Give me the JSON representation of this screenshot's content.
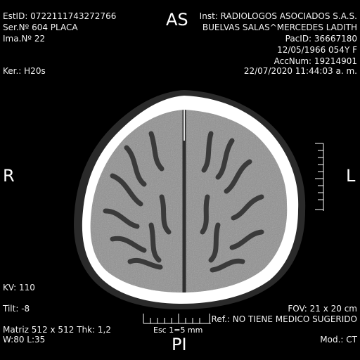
{
  "header_left": {
    "study_id": "EstID: 0722111743272766",
    "series": "Ser.Nº 604  PLACA",
    "image": "Ima.Nº 22",
    "kernel": "Ker.: H20s"
  },
  "header_right": {
    "institution": "Inst: RADIOLOGOS ASOCIADOS S.A.S.",
    "patient_name": "BUELVAS SALAS^MERCEDES LADITH",
    "patient_id": "PacID: 36667180",
    "dob": "12/05/1966 054Y F",
    "accession": "AccNum: 19214901",
    "datetime": "22/07/2020 11:44:03 a. m."
  },
  "orientation": {
    "top": "AS",
    "bottom": "PI",
    "left": "R",
    "right": "L"
  },
  "footer_left": {
    "kv": "KV: 110",
    "tilt": "Tilt: -8",
    "matrix": "Matriz 512 x 512 Thk: 1,2",
    "window": "W:80 L:35"
  },
  "footer_right": {
    "fov": "FOV: 21 x 20 cm",
    "referrer": "Ref.: NO TIENE MEDICO SUGERIDO",
    "modality": "Mod.: CT"
  },
  "scale": {
    "label": "Esc 1=5 mm"
  },
  "colors": {
    "background": "#000000",
    "text": "#f2f2f2",
    "skull": "#ffffff",
    "brain": "#8f8f8f",
    "csf": "#3a3a3a"
  }
}
